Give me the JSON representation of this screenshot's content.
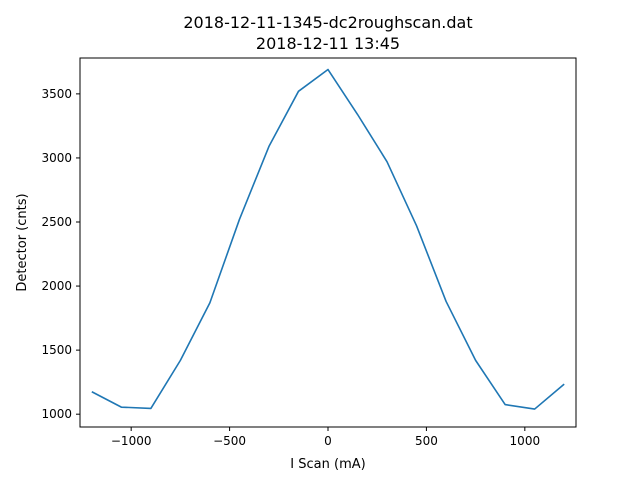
{
  "chart_data": {
    "type": "line",
    "title": "2018-12-11-1345-dc2roughscan.dat",
    "subtitle": "2018-12-11 13:45",
    "xlabel": "I Scan (mA)",
    "ylabel": "Detector (cnts)",
    "xlim": [
      -1260,
      1260
    ],
    "ylim": [
      900,
      3780
    ],
    "xticks": [
      -1000,
      -500,
      0,
      500,
      1000
    ],
    "xtick_labels": [
      "−1000",
      "−500",
      "0",
      "500",
      "1000"
    ],
    "yticks": [
      1000,
      1500,
      2000,
      2500,
      3000,
      3500
    ],
    "ytick_labels": [
      "1000",
      "1500",
      "2000",
      "2500",
      "3000",
      "3500"
    ],
    "grid": false,
    "series": [
      {
        "color": "#1f77b4",
        "x": [
          -1200,
          -1050,
          -900,
          -750,
          -600,
          -450,
          -300,
          -150,
          0,
          150,
          300,
          450,
          600,
          750,
          900,
          1050,
          1200
        ],
        "y": [
          1175,
          1055,
          1045,
          1420,
          1870,
          2520,
          3090,
          3520,
          3690,
          3340,
          2970,
          2470,
          1880,
          1420,
          1075,
          1040,
          1235
        ]
      }
    ]
  }
}
